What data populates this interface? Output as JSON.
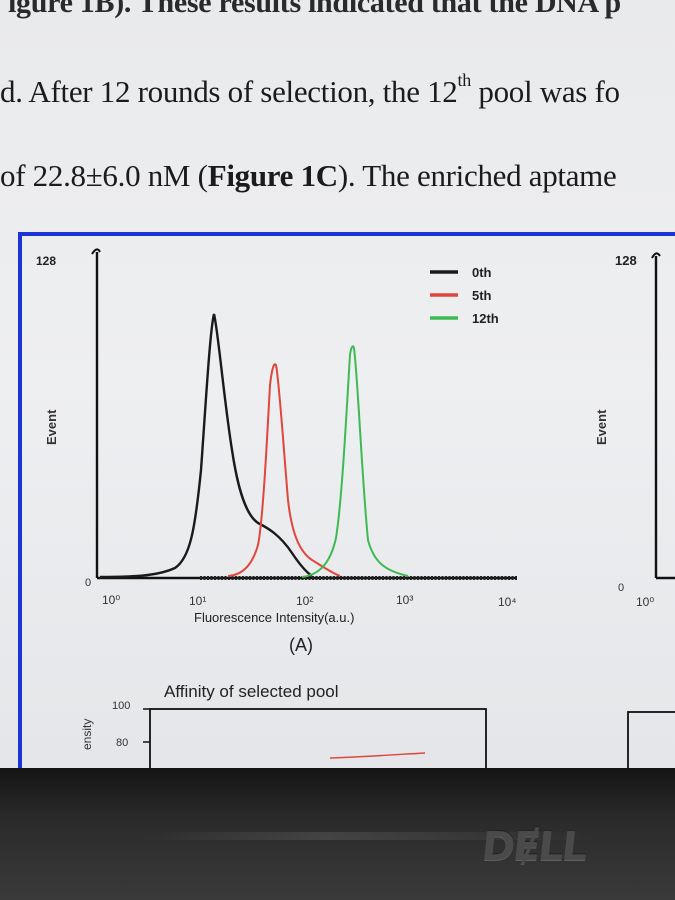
{
  "document": {
    "line1": "igure 1B). These results indicated that the DNA p",
    "line2_a": "d. After 12 rounds of selection, the 12",
    "line2_sup": "th",
    "line2_b": " pool was fo",
    "line3_a": " of 22.8±6.0 nM (",
    "line3_bold": "Figure 1C",
    "line3_b": "). The enriched aptame"
  },
  "figure_a": {
    "y_top": "128",
    "y_zero": "0",
    "y_label": "Event",
    "x_ticks": [
      "10⁰",
      "10¹",
      "10²",
      "10³",
      "10⁴"
    ],
    "x_label": "Fluorescence Intensity(a.u.)",
    "panel_label": "(A)",
    "legend": [
      {
        "name": "0th",
        "color": "#1a1a1a"
      },
      {
        "name": "5th",
        "color": "#e0463c"
      },
      {
        "name": "12th",
        "color": "#3dba52"
      }
    ]
  },
  "figure_right": {
    "y_top": "128",
    "y_zero": "0",
    "y_label": "Event",
    "x_tick": "10⁰"
  },
  "figure_c": {
    "title": "Affinity of selected pool",
    "y_label_partial": "ensity",
    "y_ticks": [
      "100",
      "80"
    ]
  },
  "bezel": {
    "logo": "DɆLL"
  }
}
